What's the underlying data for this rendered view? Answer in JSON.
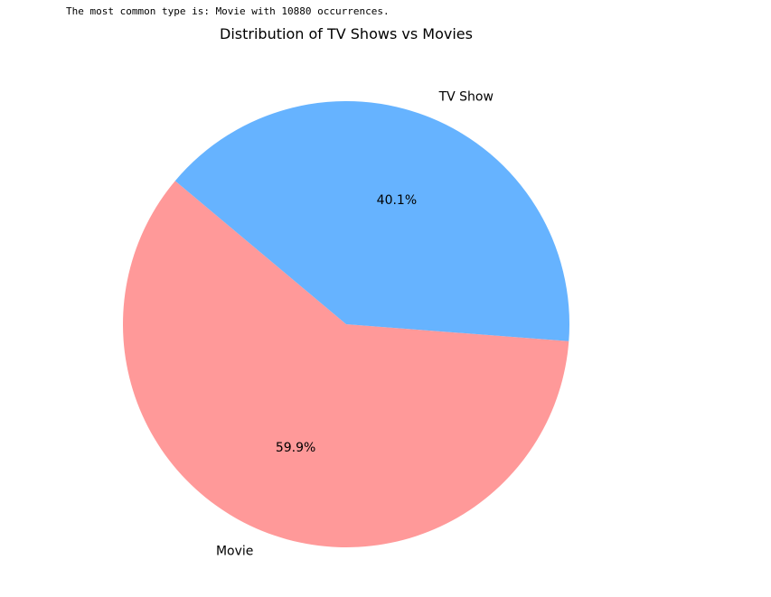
{
  "console": {
    "output": "The most common type is: Movie with 10880 occurrences."
  },
  "chart_data": {
    "type": "pie",
    "title": "Distribution of TV Shows vs Movies",
    "categories": [
      "Movie",
      "TV Show"
    ],
    "values": [
      59.9,
      40.1
    ],
    "percent_labels": [
      "59.9%",
      "40.1%"
    ],
    "colors": [
      "#ff9999",
      "#66b3ff"
    ],
    "start_angle_deg": 140,
    "legend": "none",
    "grid": false
  }
}
